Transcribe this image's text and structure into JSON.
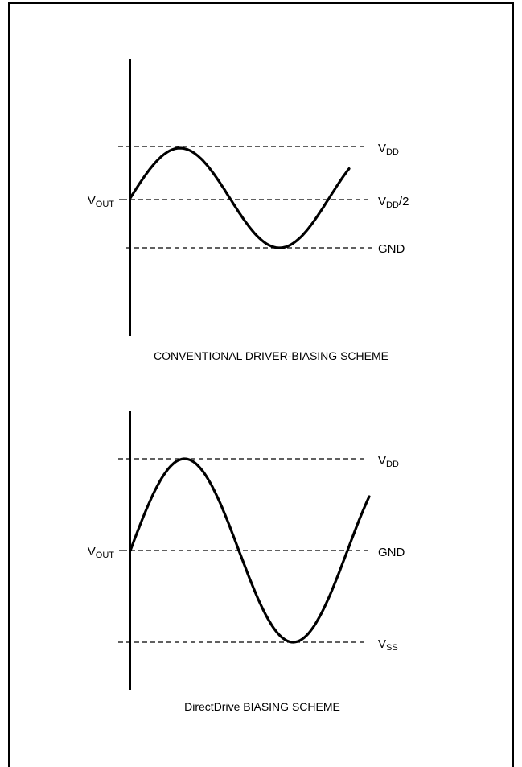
{
  "diagrams": [
    {
      "caption": "CONVENTIONAL DRIVER-BIASING SCHEME",
      "vout": {
        "main": "V",
        "sub": "OUT"
      },
      "levels": [
        {
          "main": "V",
          "sub": "DD",
          "suffix": ""
        },
        {
          "main": "V",
          "sub": "DD",
          "suffix": "/2"
        },
        {
          "main": "GND",
          "sub": "",
          "suffix": ""
        }
      ]
    },
    {
      "caption": "DirectDrive BIASING SCHEME",
      "vout": {
        "main": "V",
        "sub": "OUT"
      },
      "levels": [
        {
          "main": "V",
          "sub": "DD",
          "suffix": ""
        },
        {
          "main": "GND",
          "sub": "",
          "suffix": ""
        },
        {
          "main": "V",
          "sub": "SS",
          "suffix": ""
        }
      ]
    }
  ]
}
